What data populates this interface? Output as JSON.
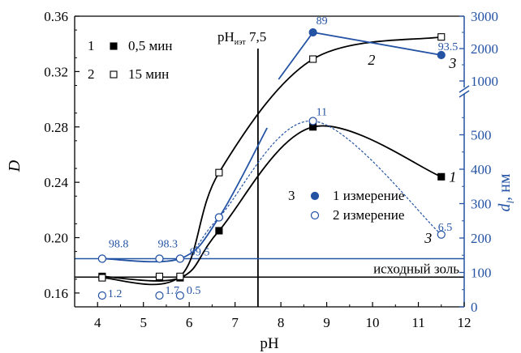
{
  "chart_data": {
    "type": "line",
    "title": "",
    "xlabel": "pH",
    "ylabel_left": "D",
    "ylabel_right": "d",
    "ylabel_right_sub": "l",
    "ylabel_right_unit": ", нм",
    "xlim": [
      3.5,
      12
    ],
    "xticks": [
      "4",
      "5",
      "6",
      "7",
      "8",
      "9",
      "10",
      "11",
      "12"
    ],
    "ylim_left": [
      0.15,
      0.36
    ],
    "yticks_left": [
      "0.16",
      "0.20",
      "0.24",
      "0.28",
      "0.32",
      "0.36"
    ],
    "right_axis_lower": {
      "ylim": [
        0,
        600
      ],
      "ticks": [
        "0",
        "100",
        "200",
        "300",
        "400",
        "500"
      ]
    },
    "right_axis_upper": {
      "ylim": [
        700,
        3000
      ],
      "ticks": [
        "1000",
        "2000",
        "3000"
      ]
    },
    "series": [
      {
        "name": "0,5 мин",
        "number": "1",
        "axis": "left",
        "marker": "filled-square",
        "color": "#000000",
        "x": [
          4.1,
          5.35,
          5.8,
          6.65,
          8.7,
          11.5
        ],
        "y": [
          0.172,
          0.171,
          0.171,
          0.205,
          0.28,
          0.244
        ]
      },
      {
        "name": "15 мин",
        "number": "2",
        "axis": "left",
        "marker": "open-square",
        "color": "#000000",
        "x": [
          4.1,
          5.35,
          5.8,
          6.65,
          8.7,
          11.5
        ],
        "y": [
          0.171,
          0.172,
          0.172,
          0.247,
          0.329,
          0.345
        ]
      },
      {
        "name": "1 измерение",
        "number": "3",
        "axis": "right",
        "marker": "filled-circle",
        "color": "#2453a4",
        "x": [
          4.1,
          5.35,
          5.8,
          6.65,
          8.7,
          11.5
        ],
        "y": [
          140,
          140,
          140,
          260,
          2500,
          1800
        ],
        "labels": [
          "98.8",
          "98.3",
          "99.5",
          "",
          "89",
          "93.5"
        ]
      },
      {
        "name": "2 измерение",
        "number": "3",
        "axis": "right",
        "marker": "open-circle",
        "color": "#2453a4",
        "x": [
          4.1,
          5.35,
          5.8,
          6.65,
          8.7,
          11.5
        ],
        "y": [
          140,
          140,
          140,
          260,
          540,
          210
        ],
        "labels": [
          "1.2",
          "1.7",
          "0.5",
          "",
          "11",
          "6.5"
        ]
      }
    ],
    "bottom_labels_y": [
      33,
      33,
      33
    ],
    "curve_labels": [
      "1",
      "2",
      "3",
      "3"
    ],
    "annotations": {
      "pi_label": "pH",
      "pi_sub": "иэт",
      "pi_value": "7,5",
      "pi_x": 7.5,
      "sol_label": "исходный золь",
      "sol_level_left": 0.1715,
      "sol_level_right": 140
    },
    "grid": false,
    "legend_left_position": "top-left",
    "legend_right_position": "center-right",
    "colors": {
      "black": "#000000",
      "blue": "#2453a4"
    }
  }
}
